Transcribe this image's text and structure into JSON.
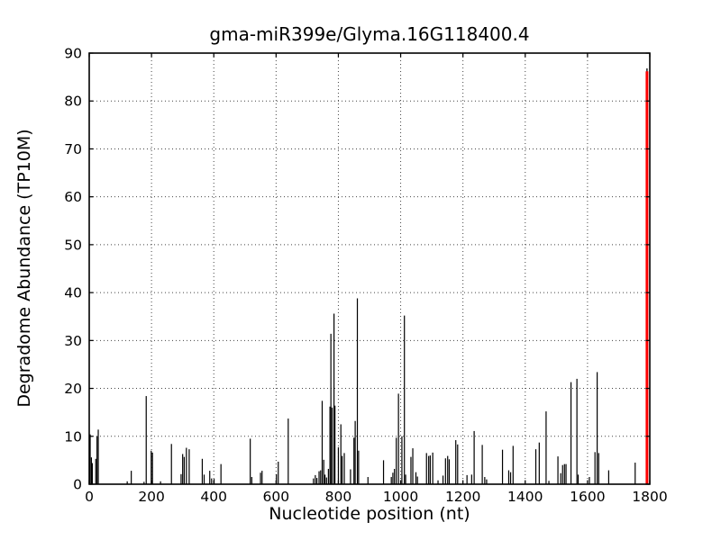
{
  "figure": {
    "title": "gma-miR399e/Glyma.16G118400.4",
    "xlabel": "Nucleotide position (nt)",
    "ylabel": "Degradome Abundance (TP10M)"
  },
  "chart_data": {
    "type": "bar",
    "title": "gma-miR399e/Glyma.16G118400.4",
    "xlabel": "Nucleotide position (nt)",
    "ylabel": "Degradome Abundance (TP10M)",
    "xlim": [
      0,
      1800
    ],
    "ylim": [
      0,
      90
    ],
    "xticks": [
      0,
      200,
      400,
      600,
      800,
      1000,
      1200,
      1400,
      1600,
      1800
    ],
    "yticks": [
      0,
      10,
      20,
      30,
      40,
      50,
      60,
      70,
      80,
      90
    ],
    "grid": "dotted",
    "legend": "none",
    "bar_color": "#000000",
    "highlight_color": "#ff0000",
    "bars": [
      [
        3,
        10.4
      ],
      [
        7,
        5.6
      ],
      [
        10,
        4.4
      ],
      [
        21,
        5.3
      ],
      [
        25,
        10.0
      ],
      [
        29,
        11.4
      ],
      [
        122,
        0.6
      ],
      [
        135,
        2.8
      ],
      [
        176,
        0.5
      ],
      [
        183,
        18.4
      ],
      [
        199,
        7.0
      ],
      [
        203,
        6.6
      ],
      [
        229,
        0.6
      ],
      [
        264,
        8.4
      ],
      [
        295,
        2.1
      ],
      [
        300,
        6.3
      ],
      [
        305,
        5.7
      ],
      [
        312,
        7.6
      ],
      [
        321,
        7.3
      ],
      [
        363,
        5.3
      ],
      [
        369,
        2.0
      ],
      [
        387,
        2.8
      ],
      [
        393,
        1.2
      ],
      [
        401,
        1.1
      ],
      [
        423,
        4.2
      ],
      [
        517,
        9.5
      ],
      [
        522,
        1.5
      ],
      [
        550,
        2.4
      ],
      [
        555,
        2.8
      ],
      [
        601,
        2.1
      ],
      [
        607,
        4.7
      ],
      [
        639,
        13.7
      ],
      [
        720,
        1.2
      ],
      [
        726,
        1.9
      ],
      [
        731,
        1.3
      ],
      [
        738,
        2.7
      ],
      [
        743,
        2.9
      ],
      [
        748,
        17.4
      ],
      [
        753,
        5.1
      ],
      [
        757,
        2.0
      ],
      [
        762,
        1.4
      ],
      [
        768,
        3.2
      ],
      [
        773,
        16.2
      ],
      [
        776,
        31.4
      ],
      [
        780,
        16.0
      ],
      [
        786,
        35.6
      ],
      [
        789,
        16.4
      ],
      [
        800,
        7.7
      ],
      [
        808,
        12.5
      ],
      [
        812,
        5.9
      ],
      [
        819,
        6.5
      ],
      [
        839,
        3.1
      ],
      [
        850,
        9.7
      ],
      [
        854,
        13.2
      ],
      [
        861,
        38.8
      ],
      [
        865,
        7.0
      ],
      [
        895,
        1.5
      ],
      [
        945,
        5.0
      ],
      [
        970,
        1.5
      ],
      [
        975,
        2.4
      ],
      [
        980,
        3.2
      ],
      [
        986,
        9.7
      ],
      [
        993,
        18.9
      ],
      [
        1004,
        10.0
      ],
      [
        1012,
        35.2
      ],
      [
        1016,
        2.0
      ],
      [
        1033,
        5.7
      ],
      [
        1039,
        7.5
      ],
      [
        1049,
        2.5
      ],
      [
        1054,
        1.6
      ],
      [
        1083,
        6.5
      ],
      [
        1090,
        5.9
      ],
      [
        1095,
        6.0
      ],
      [
        1103,
        6.6
      ],
      [
        1120,
        0.8
      ],
      [
        1136,
        1.8
      ],
      [
        1144,
        5.4
      ],
      [
        1151,
        5.9
      ],
      [
        1156,
        5.2
      ],
      [
        1177,
        9.2
      ],
      [
        1183,
        8.3
      ],
      [
        1213,
        1.9
      ],
      [
        1228,
        2.0
      ],
      [
        1236,
        11.1
      ],
      [
        1262,
        8.2
      ],
      [
        1270,
        1.5
      ],
      [
        1276,
        1.0
      ],
      [
        1327,
        7.2
      ],
      [
        1347,
        2.9
      ],
      [
        1353,
        2.5
      ],
      [
        1361,
        8.0
      ],
      [
        1434,
        7.3
      ],
      [
        1445,
        8.7
      ],
      [
        1467,
        15.2
      ],
      [
        1476,
        0.7
      ],
      [
        1505,
        5.8
      ],
      [
        1514,
        2.3
      ],
      [
        1520,
        4.0
      ],
      [
        1526,
        4.2
      ],
      [
        1531,
        4.2
      ],
      [
        1547,
        21.3
      ],
      [
        1566,
        22.0
      ],
      [
        1570,
        2.0
      ],
      [
        1606,
        1.5
      ],
      [
        1624,
        6.7
      ],
      [
        1631,
        23.4
      ],
      [
        1636,
        6.5
      ],
      [
        1668,
        2.9
      ],
      [
        1753,
        4.5
      ]
    ],
    "highlight_bar": {
      "x": 1791,
      "value": 86.2,
      "black_tip_value": 86.8
    }
  }
}
